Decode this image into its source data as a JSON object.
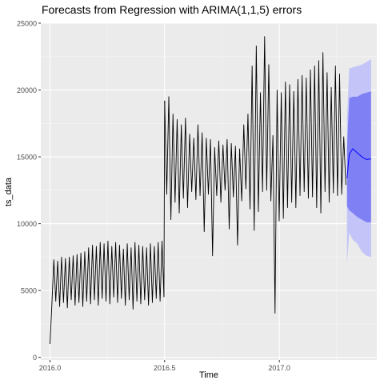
{
  "chart_data": {
    "type": "line",
    "title": "Forecasts from Regression with ARIMA(1,1,5) errors",
    "xlabel": "Time",
    "ylabel": "ts_data",
    "xlim": [
      2015.96,
      2017.425
    ],
    "ylim": [
      -200,
      25000
    ],
    "x_ticks": [
      2016.0,
      2016.5,
      2017.0
    ],
    "x_tick_labels": [
      "2016.0",
      "2016.5",
      "2017.0"
    ],
    "y_ticks": [
      0,
      5000,
      10000,
      15000,
      20000,
      25000
    ],
    "y_tick_labels": [
      "0",
      "5000",
      "10000",
      "15000",
      "20000",
      "25000"
    ],
    "grid": true,
    "legend": "none",
    "colors": {
      "panel": "#ebebeb",
      "grid_major": "#ffffff",
      "series": "#000000",
      "forecast_mean": "#0000ff",
      "band80": "#8080f5",
      "band95": "#c4c4f8",
      "axis_text": "#4d4d4d"
    },
    "series": [
      {
        "segments": [
          {
            "x_start": 2016.0,
            "x_end": 2016.497,
            "values": [
              1000,
              4000,
              7300,
              4200,
              7200,
              3800,
              7500,
              4100,
              7400,
              3700,
              7500,
              4300,
              7600,
              3900,
              7700,
              4100,
              7800,
              3800,
              7900,
              4200,
              8200,
              4000,
              8400,
              4300,
              8300,
              3900,
              8600,
              4400,
              8500,
              4200,
              8700,
              4000,
              8300,
              4500,
              8600,
              4100,
              8400,
              4400,
              8100,
              3900,
              8500,
              4300,
              8200,
              3600,
              8600,
              4200,
              8400,
              4000,
              8300,
              4300,
              8200,
              3900,
              8500,
              4100,
              8300,
              4400,
              8600,
              4200,
              8700,
              4500
            ]
          },
          {
            "x_start": 2016.5,
            "x_end": 2017.29,
            "values": [
              19200,
              12200,
              19500,
              10300,
              18200,
              11600,
              17800,
              10800,
              17400,
              11900,
              17900,
              11200,
              16700,
              12400,
              16400,
              11800,
              17400,
              12100,
              16800,
              9400,
              16400,
              12200,
              16300,
              7600,
              15700,
              12100,
              16200,
              11600,
              15900,
              12500,
              16300,
              9600,
              16000,
              12000,
              15800,
              8400,
              15600,
              11700,
              17400,
              12600,
              18200,
              11100,
              21800,
              9500,
              23300,
              10900,
              19800,
              12400,
              24000,
              12500,
              21900,
              11700,
              16600,
              3300,
              20000,
              10200,
              19800,
              10400,
              20600,
              11200,
              20400,
              11600,
              19900,
              11200,
              20800,
              12100,
              21100,
              12400,
              20900,
              11900,
              21500,
              12000,
              21800,
              11200,
              22200,
              10800,
              22800,
              12400,
              21300,
              11600,
              20200,
              12300,
              21800,
              12100,
              21200,
              12200,
              16500,
              12900
            ]
          }
        ]
      }
    ],
    "forecast": {
      "x": [
        2017.295,
        2017.305,
        2017.32,
        2017.34,
        2017.36,
        2017.38,
        2017.4
      ],
      "mean": [
        13400,
        15200,
        15600,
        15300,
        15000,
        14800,
        14850
      ],
      "lower80": [
        11300,
        11000,
        10800,
        10500,
        10300,
        10100,
        10100
      ],
      "upper80": [
        15600,
        19400,
        19500,
        19500,
        19700,
        19800,
        19900
      ],
      "lower95": [
        7000,
        9300,
        8800,
        8500,
        7900,
        7600,
        7500
      ],
      "upper95": [
        17900,
        21600,
        21700,
        21800,
        21900,
        22100,
        22300
      ]
    }
  }
}
